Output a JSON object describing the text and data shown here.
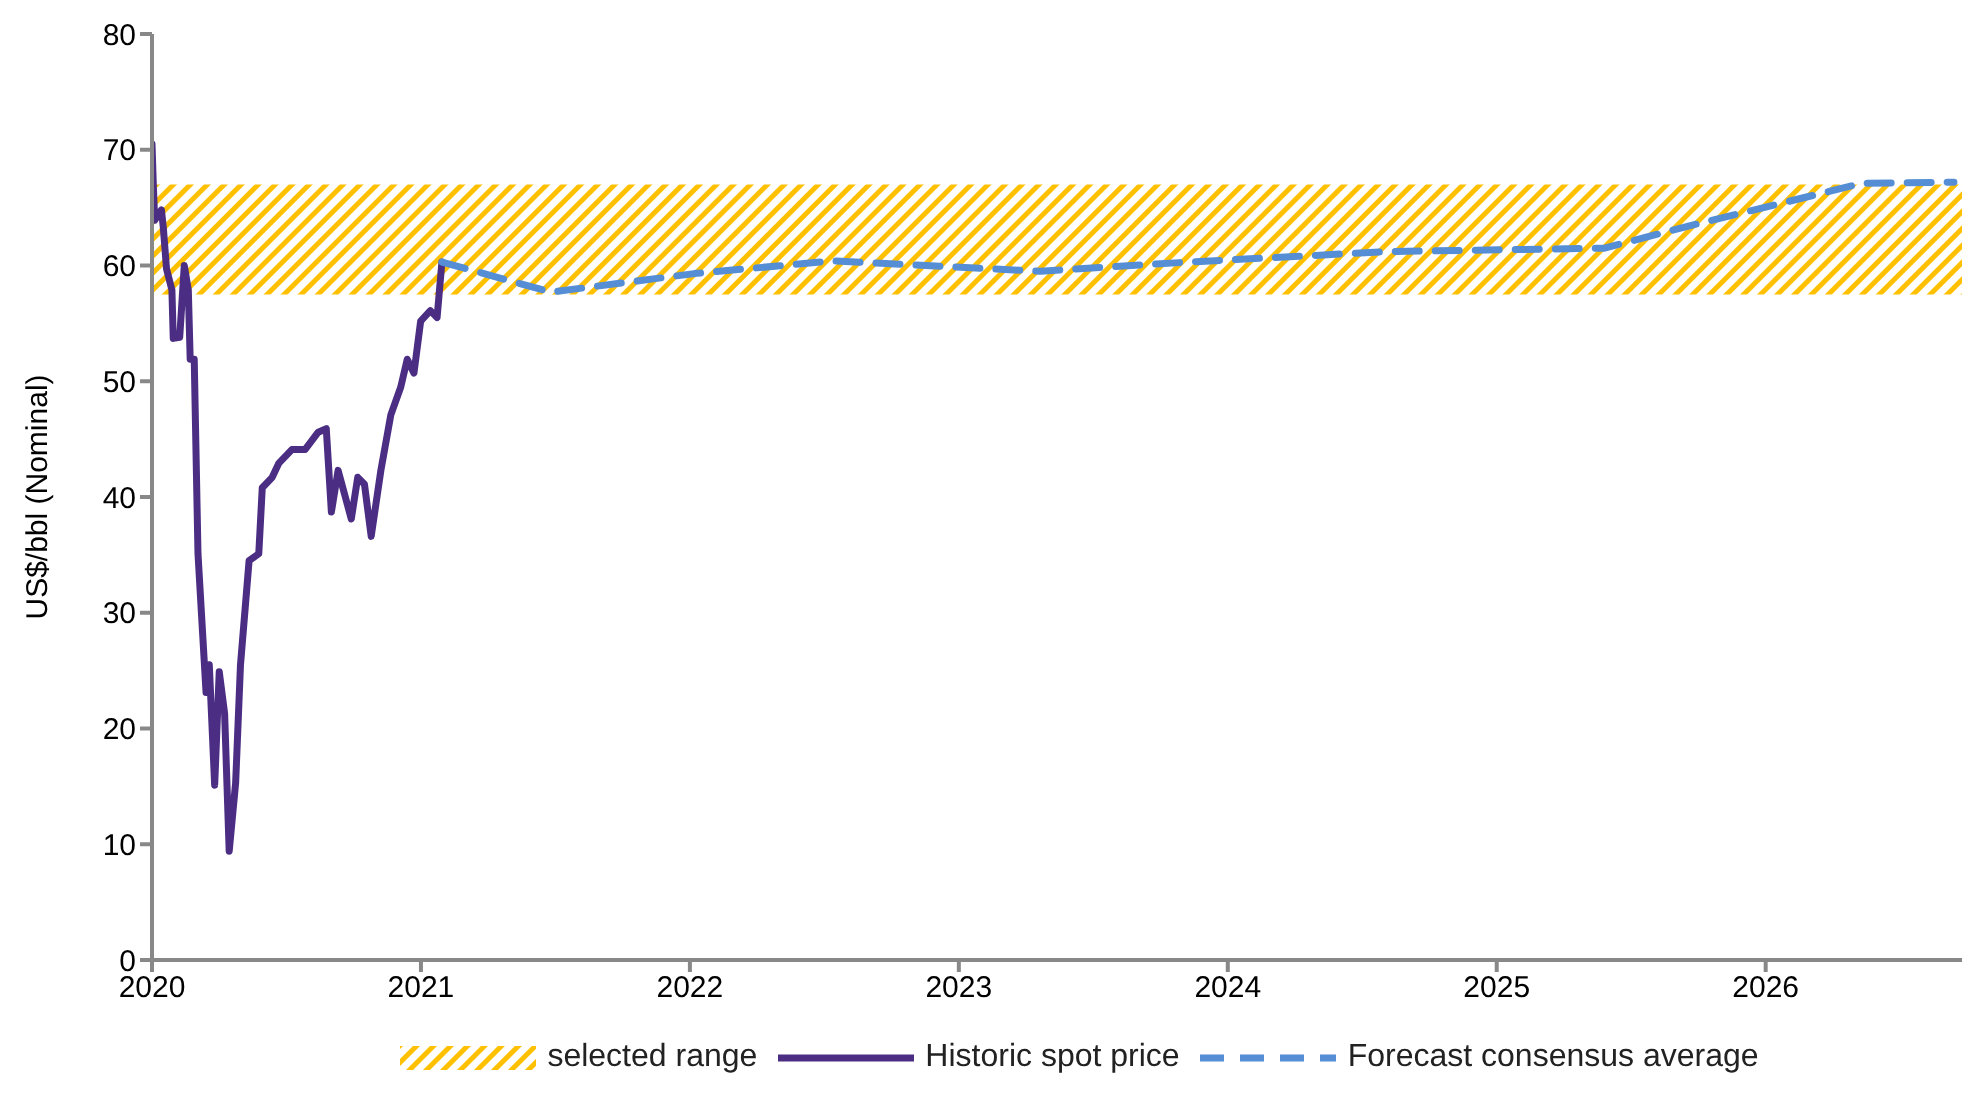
{
  "chart_data": {
    "type": "line",
    "ylabel": "US$/bbl (Nominal)",
    "xlim": [
      2020,
      2026.73
    ],
    "xticks": [
      2020,
      2021,
      2022,
      2023,
      2024,
      2025,
      2026
    ],
    "ylim": [
      0,
      80
    ],
    "yticks": [
      0,
      10,
      20,
      30,
      40,
      50,
      60,
      70,
      80
    ],
    "grid": false,
    "legend": "bottom",
    "marker": "none",
    "bands": [
      {
        "axis": "y",
        "from": 57.5,
        "to": 67,
        "label": "selected range",
        "color": "#ffc000"
      }
    ],
    "series": [
      {
        "name": "Historic spot price",
        "color": "#4b2e83",
        "line_style": "solid",
        "x": [
          2020.0,
          2020.005,
          2020.01,
          2020.035,
          2020.042,
          2020.054,
          2020.074,
          2020.079,
          2020.103,
          2020.12,
          2020.135,
          2020.142,
          2020.157,
          2020.171,
          2020.189,
          2020.201,
          2020.213,
          2020.233,
          2020.25,
          2020.27,
          2020.287,
          2020.311,
          2020.329,
          2020.361,
          2020.397,
          2020.41,
          2020.447,
          2020.471,
          2020.52,
          2020.569,
          2020.618,
          2020.648,
          2020.667,
          2020.692,
          2020.741,
          2020.765,
          2020.79,
          2020.815,
          2020.851,
          2020.888,
          2020.925,
          2020.949,
          2020.974,
          2020.999,
          2021.035,
          2021.06,
          2021.078
        ],
        "values": [
          70.5,
          66.9,
          63.9,
          64.8,
          63.3,
          59.7,
          57.9,
          53.7,
          53.8,
          60,
          57.9,
          51.9,
          51.9,
          35.1,
          27.9,
          23.1,
          25.5,
          15.1,
          24.9,
          21.3,
          9.4,
          15.3,
          25.5,
          34.5,
          35.1,
          40.8,
          41.7,
          42.9,
          44.1,
          44.1,
          45.6,
          45.9,
          38.7,
          42.3,
          38.1,
          41.7,
          41.1,
          36.6,
          42.3,
          47.1,
          49.5,
          51.9,
          50.7,
          55.2,
          56.1,
          55.5,
          60.3
        ]
      },
      {
        "name": "Forecast consensus average",
        "color": "#558ed5",
        "line_style": "dashed",
        "x": [
          2021.078,
          2021.483,
          2022.016,
          2022.531,
          2023.304,
          2023.856,
          2024.592,
          2025.401,
          2025.695,
          2026.358,
          2026.7
        ],
        "values": [
          60.3,
          57.7,
          59.3,
          60.4,
          59.5,
          60.3,
          61.2,
          61.5,
          63.3,
          67.1,
          67.2
        ]
      }
    ]
  }
}
